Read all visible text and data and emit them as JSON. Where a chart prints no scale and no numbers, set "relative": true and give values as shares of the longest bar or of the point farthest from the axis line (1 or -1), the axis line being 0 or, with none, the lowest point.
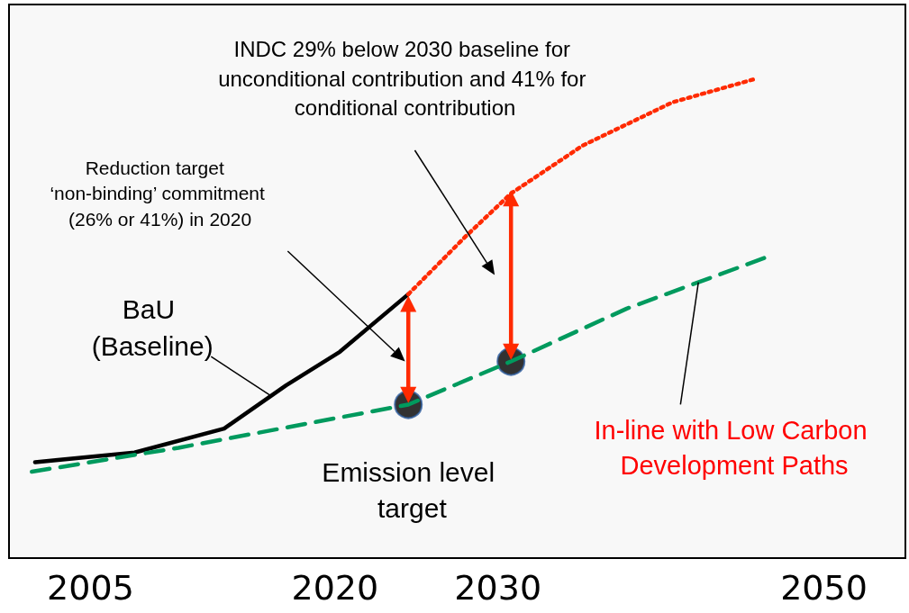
{
  "chart_data": {
    "type": "line",
    "relative": true,
    "xlim": [
      2000,
      2055
    ],
    "xticks": [
      2005,
      2020,
      2030,
      2050
    ],
    "grid": false,
    "series": [
      {
        "color": "#000000",
        "line_style": "solid",
        "marker": "none",
        "x": [
          2001.6,
          2007.7,
          2013.2,
          2017,
          2020.3,
          2024.5
        ],
        "values": [
          0.2,
          0.22,
          0.27,
          0.36,
          0.43,
          0.55
        ]
      },
      {
        "color": "#ff2a00",
        "line_style": "dotted",
        "marker": "none",
        "x": [
          2024.5,
          2028,
          2030.8,
          2035.2,
          2040.7,
          2045.9
        ],
        "values": [
          0.55,
          0.67,
          0.76,
          0.86,
          0.95,
          1
        ]
      },
      {
        "color": "#009a5e",
        "line_style": "dashed",
        "marker": "none",
        "x": [
          2001.4,
          2010.4,
          2024.5,
          2030.8,
          2037.9,
          2046.7
        ],
        "values": [
          0.18,
          0.23,
          0.32,
          0.41,
          0.52,
          0.63
        ]
      },
      {
        "color": "#ff2a00",
        "line_style": "solid",
        "marker": "triangle",
        "x": [
          2024.5,
          2024.5
        ],
        "values": [
          0.34,
          0.53
        ]
      },
      {
        "color": "#ff2a00",
        "line_style": "solid",
        "marker": "triangle",
        "x": [
          2030.8,
          2030.8
        ],
        "values": [
          0.43,
          0.75
        ]
      },
      {
        "type": "scatter",
        "color": "#000000",
        "marker": "circle",
        "x": [
          2024.5,
          2030.8
        ],
        "values": [
          0.32,
          0.41
        ]
      }
    ],
    "annotations": [
      "INDC 29% below 2030 baseline for unconditional contribution and 41% for conditional contribution",
      "Reduction target ‘non-binding’ commitment (26% or 41%) in 2020",
      {
        "text": "BaU (Baseline)",
        "x": 2016,
        "y": 0.34
      },
      {
        "text": "In-line with Low Carbon Development Paths",
        "x": 2042.3,
        "y": 0.575
      },
      {
        "text": "Emission level target",
        "x": 2024.5,
        "y": 0.32
      }
    ]
  }
}
